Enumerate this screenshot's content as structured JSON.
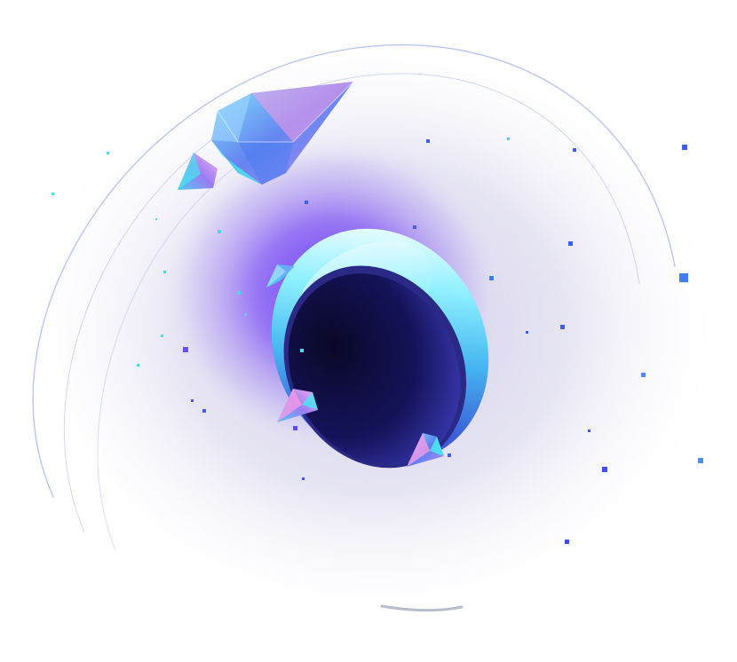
{
  "colors": {
    "background": "#ffffff",
    "halo": "#d8d6ec",
    "glow": "#7b55f5",
    "orbit_line": "#a9b8f2",
    "ring_light": "#8ff0ff",
    "ring_mid": "#45b7f0",
    "ring_dark": "#3a5fd8",
    "hole_inner": "#0d0b2e",
    "hole_edge": "#2a2a86",
    "crystal_blue": "#5f8ef0",
    "crystal_cyan": "#47e6f0",
    "crystal_pink": "#f59ae6",
    "particle_blue": "#3f5ef2",
    "particle_cyan": "#4fd6f0"
  },
  "icons": [
    "portal-ring-icon",
    "crystal-shard-icon",
    "orbit-line-icon",
    "particle-icon"
  ]
}
